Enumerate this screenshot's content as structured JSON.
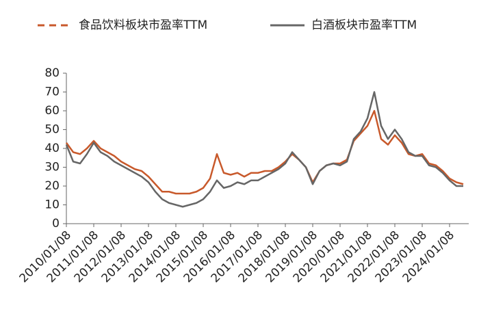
{
  "chart_data": {
    "type": "line",
    "categories": [
      "2010/01/08",
      null,
      null,
      null,
      "2011/01/08",
      null,
      null,
      null,
      "2012/01/08",
      null,
      null,
      null,
      "2013/01/08",
      null,
      null,
      null,
      "2014/01/08",
      null,
      null,
      null,
      "2015/01/08",
      null,
      null,
      null,
      "2016/01/08",
      null,
      null,
      null,
      "2017/01/08",
      null,
      null,
      null,
      "2018/01/08",
      null,
      null,
      null,
      "2019/01/08",
      null,
      null,
      null,
      "2020/01/08",
      null,
      null,
      null,
      "2021/01/08",
      null,
      null,
      null,
      "2022/01/08",
      null,
      null,
      null,
      "2023/01/08",
      null,
      null,
      null,
      "2024/01/08",
      null,
      null
    ],
    "series": [
      {
        "name": "食品饮料板块市盈率TTM",
        "color": "#c8592b",
        "values": [
          43,
          38,
          37,
          40,
          44,
          40,
          38,
          36,
          33,
          31,
          29,
          28,
          25,
          21,
          17,
          17,
          16,
          16,
          16,
          17,
          19,
          24,
          37,
          27,
          26,
          27,
          25,
          27,
          27,
          28,
          28,
          30,
          33,
          37,
          34,
          30,
          22,
          28,
          31,
          32,
          32,
          34,
          44,
          48,
          52,
          60,
          45,
          42,
          47,
          43,
          37,
          36,
          37,
          32,
          31,
          28,
          24,
          22,
          21
        ]
      },
      {
        "name": "白酒板块市盈率TTM",
        "color": "#666666",
        "values": [
          42,
          33,
          32,
          37,
          43,
          38,
          36,
          33,
          31,
          29,
          27,
          25,
          22,
          17,
          13,
          11,
          10,
          9,
          10,
          11,
          13,
          17,
          23,
          19,
          20,
          22,
          21,
          23,
          23,
          25,
          27,
          29,
          32,
          38,
          34,
          30,
          21,
          28,
          31,
          32,
          31,
          33,
          45,
          49,
          56,
          70,
          52,
          45,
          50,
          45,
          38,
          36,
          36,
          31,
          30,
          27,
          23,
          20,
          20
        ]
      }
    ],
    "ylim": [
      0,
      80
    ],
    "yticks": [
      0,
      10,
      20,
      30,
      40,
      50,
      60,
      70,
      80
    ]
  }
}
